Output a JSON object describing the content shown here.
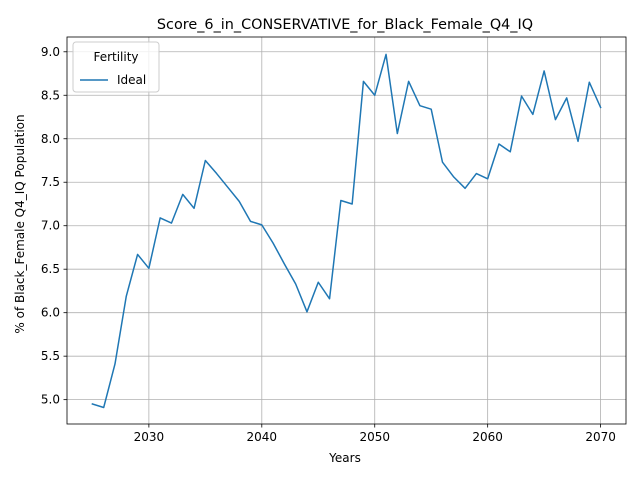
{
  "chart_data": {
    "type": "line",
    "title": "Score_6_in_CONSERVATIVE_for_Black_Female_Q4_IQ",
    "xlabel": "Years",
    "ylabel": "% of Black_Female Q4_IQ Population",
    "xlim": [
      2022.75,
      2072.25
    ],
    "ylim": [
      4.72,
      9.17
    ],
    "x_ticks": [
      2030,
      2040,
      2050,
      2060,
      2070
    ],
    "y_ticks": [
      5.0,
      5.5,
      6.0,
      6.5,
      7.0,
      7.5,
      8.0,
      8.5,
      9.0
    ],
    "x_tick_labels": [
      "2030",
      "2040",
      "2050",
      "2060",
      "2070"
    ],
    "y_tick_labels": [
      "5.0",
      "5.5",
      "6.0",
      "6.5",
      "7.0",
      "7.5",
      "8.0",
      "8.5",
      "9.0"
    ],
    "grid": true,
    "legend": {
      "title": "Fertility",
      "placement": "upper-left"
    },
    "series": [
      {
        "name": "Ideal",
        "color": "#1f77b4",
        "x": [
          2025,
          2026,
          2027,
          2028,
          2029,
          2030,
          2031,
          2032,
          2033,
          2034,
          2035,
          2036,
          2037,
          2038,
          2039,
          2040,
          2041,
          2042,
          2043,
          2044,
          2045,
          2046,
          2047,
          2048,
          2049,
          2050,
          2051,
          2052,
          2053,
          2054,
          2055,
          2056,
          2057,
          2058,
          2059,
          2060,
          2061,
          2062,
          2063,
          2064,
          2065,
          2066,
          2067,
          2068,
          2069,
          2070
        ],
        "y": [
          4.95,
          4.91,
          5.41,
          6.19,
          6.67,
          6.51,
          7.09,
          7.03,
          7.36,
          7.2,
          7.75,
          7.6,
          7.44,
          7.28,
          7.05,
          7.01,
          6.8,
          6.56,
          6.33,
          6.01,
          6.35,
          6.16,
          7.29,
          7.25,
          8.66,
          8.5,
          8.97,
          8.06,
          8.66,
          8.38,
          8.34,
          7.73,
          7.56,
          7.43,
          7.6,
          7.54,
          7.94,
          7.85,
          8.49,
          8.28,
          8.78,
          8.22,
          8.47,
          7.97,
          8.65,
          8.36
        ]
      }
    ]
  }
}
